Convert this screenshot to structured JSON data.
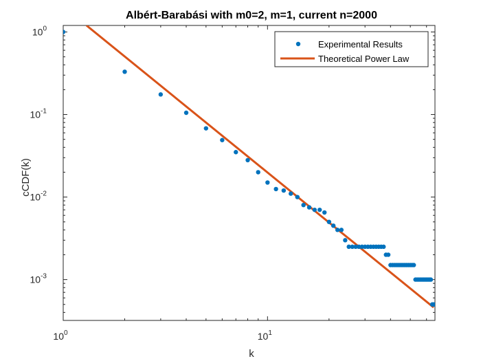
{
  "chart_data": {
    "type": "scatter",
    "title": "Albért-Barabási with m0=2, m=1, current n=2000",
    "xlabel": "k",
    "ylabel": "cCDF(k)",
    "xscale": "log",
    "yscale": "log",
    "xlim": [
      1,
      66
    ],
    "ylim": [
      0.00032,
      1.2
    ],
    "x_ticks": [
      {
        "base": "10",
        "exp": "0",
        "value": 1
      },
      {
        "base": "10",
        "exp": "1",
        "value": 10
      }
    ],
    "y_ticks": [
      {
        "base": "10",
        "exp": "0",
        "value": 1
      },
      {
        "base": "10",
        "exp": "-1",
        "value": 0.1
      },
      {
        "base": "10",
        "exp": "-2",
        "value": 0.01
      },
      {
        "base": "10",
        "exp": "-3",
        "value": 0.001
      }
    ],
    "grid": false,
    "legend_position": "top-right",
    "series": [
      {
        "name": "Experimental Results",
        "style": "markers",
        "color": "#0072BD",
        "x": [
          1,
          2,
          3,
          4,
          5,
          6,
          7,
          8,
          9,
          10,
          11,
          12,
          13,
          14,
          15,
          16,
          17,
          18,
          19,
          20,
          21,
          22,
          23,
          24,
          25,
          26,
          27,
          28,
          29,
          30,
          31,
          32,
          33,
          34,
          35,
          36,
          37,
          38,
          39,
          40,
          41,
          42,
          43,
          44,
          45,
          46,
          47,
          48,
          49,
          50,
          51,
          52,
          53,
          54,
          55,
          56,
          57,
          58,
          59,
          60,
          61,
          62,
          63,
          64,
          65,
          66
        ],
        "y": [
          1.0,
          0.33,
          0.175,
          0.105,
          0.068,
          0.049,
          0.035,
          0.028,
          0.02,
          0.015,
          0.0125,
          0.012,
          0.011,
          0.01,
          0.008,
          0.0075,
          0.007,
          0.007,
          0.0065,
          0.005,
          0.0045,
          0.004,
          0.004,
          0.003,
          0.0025,
          0.0025,
          0.0025,
          0.0025,
          0.0025,
          0.0025,
          0.0025,
          0.0025,
          0.0025,
          0.0025,
          0.0025,
          0.0025,
          0.0025,
          0.002,
          0.002,
          0.0015,
          0.0015,
          0.0015,
          0.0015,
          0.0015,
          0.0015,
          0.0015,
          0.0015,
          0.0015,
          0.0015,
          0.0015,
          0.0015,
          0.0015,
          0.001,
          0.001,
          0.001,
          0.001,
          0.001,
          0.001,
          0.001,
          0.001,
          0.001,
          0.001,
          0.001,
          0.0005,
          0.0005,
          0.0005
        ]
      },
      {
        "name": "Theoretical Power Law",
        "style": "line",
        "color": "#D95319",
        "x": [
          1.3,
          65
        ],
        "y": [
          1.2,
          0.00046
        ]
      }
    ]
  }
}
